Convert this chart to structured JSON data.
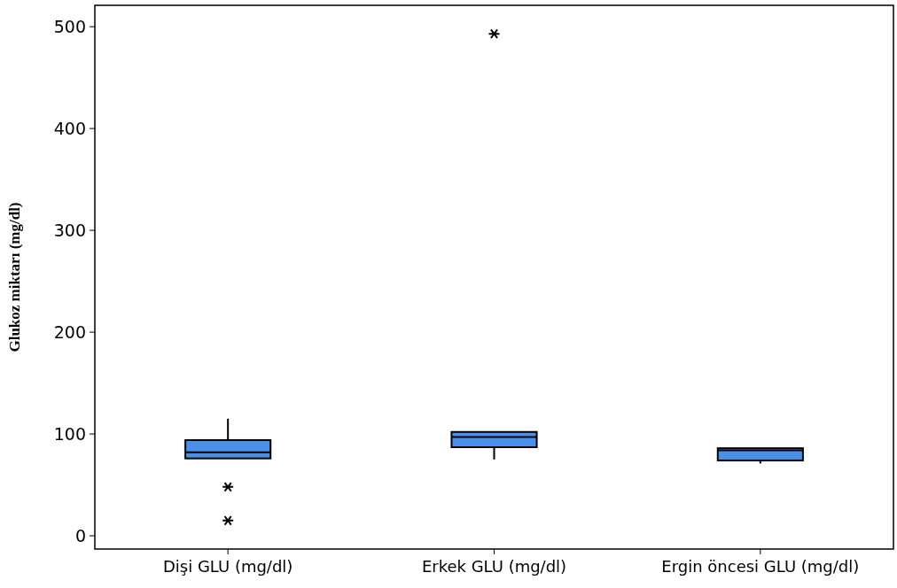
{
  "chart_data": {
    "type": "box",
    "ylabel": "Glukoz miktarı (mg/dl)",
    "categories": [
      "Dişi GLU (mg/dl)",
      "Erkek GLU (mg/dl)",
      "Ergin öncesi GLU (mg/dl)"
    ],
    "color": "#4a90e8",
    "marker": "cross",
    "ylim": [
      -13,
      521
    ],
    "yticks": [
      0,
      100,
      200,
      300,
      400,
      500
    ],
    "boxes": [
      {
        "low": 76,
        "q1": 76,
        "median": 82,
        "q3": 94,
        "high": 115,
        "outliers": [
          48,
          15
        ]
      },
      {
        "low": 75,
        "q1": 87,
        "median": 97,
        "q3": 102,
        "high": 102,
        "outliers": [
          493
        ]
      },
      {
        "low": 71,
        "q1": 74,
        "median": 84,
        "q3": 86,
        "high": 86
      }
    ]
  }
}
